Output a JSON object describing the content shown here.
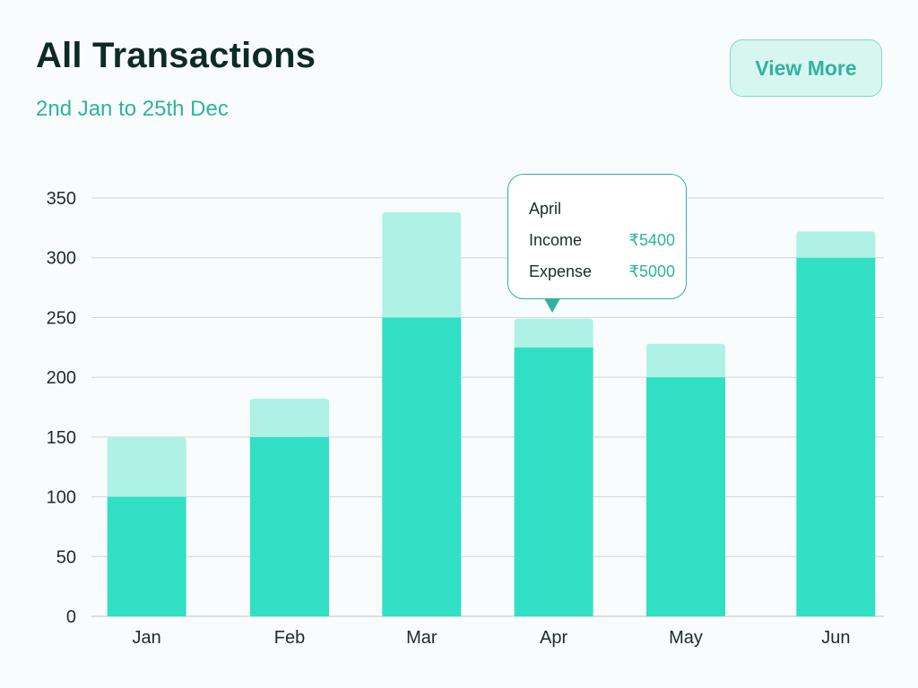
{
  "header": {
    "title": "All Transactions",
    "subtitle": "2nd Jan to 25th Dec",
    "view_more_label": "View More"
  },
  "tooltip": {
    "month": "April",
    "income_label": "Income",
    "income_value": "₹5400",
    "expense_label": "Expense",
    "expense_value": "₹5000"
  },
  "colors": {
    "bar_base": "#31e0c4",
    "bar_top": "#aef2e6",
    "grid": "#cfd6d5",
    "accent": "#2fb39d"
  },
  "chart_data": {
    "type": "bar",
    "stacked": true,
    "categories": [
      "Jan",
      "Feb",
      "Mar",
      "Apr",
      "May",
      "Jun"
    ],
    "series": [
      {
        "values": [
          100,
          150,
          250,
          225,
          200,
          300
        ]
      },
      {
        "values": [
          50,
          32,
          88,
          24,
          28,
          22
        ]
      }
    ],
    "yticks": [
      0,
      50,
      100,
      150,
      200,
      250,
      300,
      350
    ],
    "ylim": [
      0,
      350
    ],
    "grid": true
  }
}
